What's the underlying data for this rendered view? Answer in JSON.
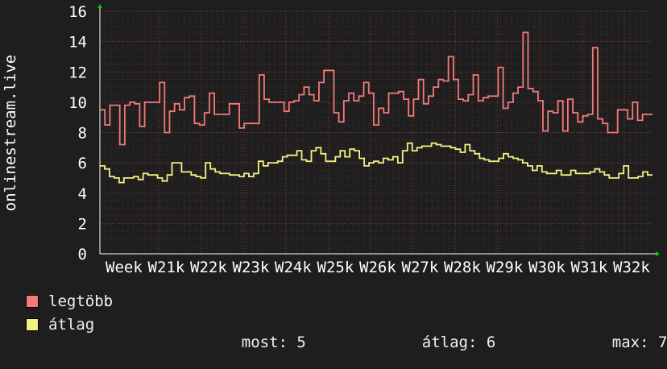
{
  "chart_data": {
    "type": "line",
    "ylabel": "onlinestream.live",
    "ylim": [
      0,
      16
    ],
    "y_ticks": [
      0,
      2,
      4,
      6,
      8,
      10,
      12,
      14,
      16
    ],
    "x_tick_labels": [
      "Week",
      "W21k",
      "W22k",
      "W23k",
      "W24k",
      "W25k",
      "W26k",
      "W27k",
      "W28k",
      "W29k",
      "W30k",
      "W31k",
      "W32k"
    ],
    "grid": true,
    "legend_position": "bottom-left",
    "series": [
      {
        "name": "legtöbb",
        "color": "#f47a7a",
        "values": [
          9.5,
          8.5,
          9.8,
          9.8,
          7.2,
          9.8,
          10,
          9.9,
          8.4,
          10,
          10,
          10,
          11.3,
          8,
          9.4,
          9.9,
          9.5,
          10.3,
          10.4,
          8.6,
          8.5,
          9.3,
          10.6,
          9.2,
          9.2,
          9.2,
          9.9,
          9.9,
          8.3,
          8.6,
          8.6,
          8.6,
          11.8,
          10.2,
          10,
          10,
          10,
          9.4,
          10,
          10.1,
          10.5,
          11,
          10.5,
          10.1,
          11.3,
          12.1,
          12.1,
          9.3,
          8.7,
          10.1,
          10.6,
          10.1,
          10.4,
          11.3,
          10.6,
          8.5,
          9.6,
          9.3,
          10.6,
          10.6,
          10.7,
          10.2,
          9.1,
          10.2,
          11.5,
          9.9,
          10.4,
          11,
          11.5,
          11.4,
          13,
          11.5,
          10.2,
          10.1,
          10.5,
          11.8,
          10.1,
          10.3,
          10.4,
          10.4,
          12.3,
          9.6,
          10,
          10.6,
          11,
          14.6,
          10.9,
          10.7,
          10.1,
          8.1,
          9.4,
          9.3,
          10.1,
          8.1,
          10.2,
          9.3,
          8.7,
          9.1,
          9.2,
          13.6,
          8.9,
          8.6,
          8,
          8,
          9.5,
          9.5,
          8.9,
          10,
          8.8,
          9.2,
          9.2
        ]
      },
      {
        "name": "átlag",
        "color": "#f2f284",
        "values": [
          5.8,
          5.6,
          5.1,
          5,
          4.7,
          5,
          5,
          5.1,
          4.9,
          5.3,
          5.2,
          5.2,
          5,
          4.8,
          5.2,
          6,
          6,
          5.4,
          5.4,
          5.2,
          5.1,
          5,
          6,
          5.6,
          5.4,
          5.3,
          5.3,
          5.2,
          5.2,
          5.1,
          5.3,
          5.1,
          5.3,
          6.1,
          5.8,
          6,
          6,
          6.1,
          6.4,
          6.5,
          6.5,
          6.8,
          6.2,
          6.1,
          6.8,
          7,
          6.6,
          6.1,
          6.1,
          6.4,
          6.8,
          6.4,
          6.9,
          6.8,
          6.3,
          5.8,
          6,
          6.1,
          6,
          6.3,
          6.2,
          6.4,
          6,
          6.8,
          7.3,
          6.8,
          7,
          7.1,
          7.1,
          7.3,
          7.2,
          7.1,
          7.1,
          7,
          6.9,
          6.7,
          7.2,
          6.8,
          6.6,
          6.3,
          6.2,
          6.1,
          6.1,
          6.3,
          6.6,
          6.4,
          6.3,
          6.2,
          6,
          5.8,
          5.5,
          5.8,
          5.4,
          5.3,
          5.3,
          5.5,
          5.2,
          5.2,
          5.5,
          5.3,
          5.3,
          5.3,
          5.4,
          5.6,
          5.4,
          5.2,
          5,
          5,
          5.3,
          5.8,
          5,
          5,
          5.1,
          5.4,
          5.2
        ]
      }
    ],
    "summary": {
      "most_label": "most:",
      "most_value": "5",
      "avg_label": "átlag:",
      "avg_value": "6",
      "max_label": "max:",
      "max_value": "7"
    }
  }
}
